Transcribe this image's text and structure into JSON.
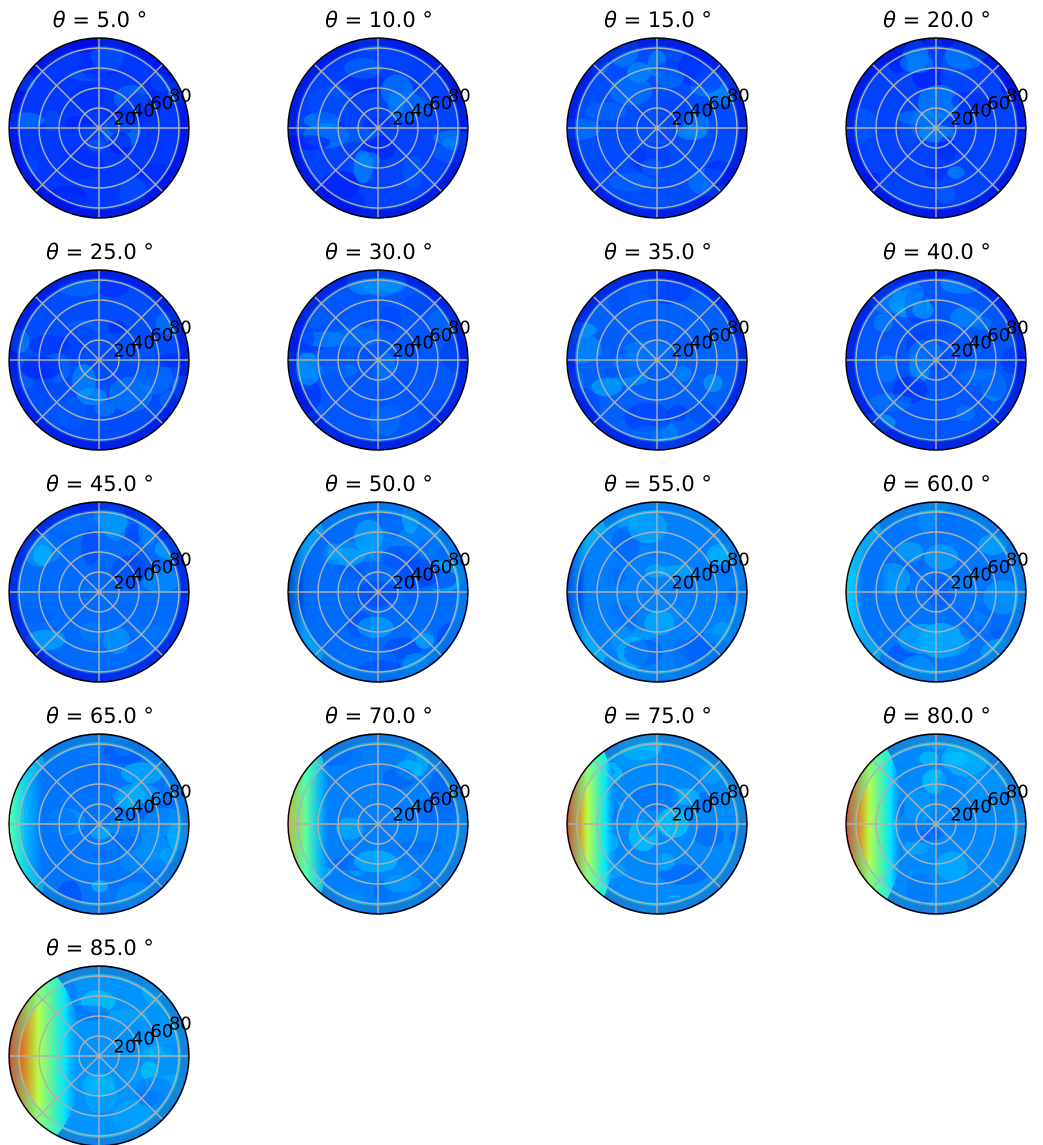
{
  "chart_data": {
    "type": "heatmap",
    "projection": "polar",
    "layout": {
      "rows": 5,
      "cols": 4,
      "panel_count": 17
    },
    "colormap": "jet",
    "grid": true,
    "radial_ticks": [
      "20",
      "40",
      "60",
      "80"
    ],
    "radial_ticks_values": [
      20,
      40,
      60,
      80
    ],
    "rlim": [
      0,
      90
    ],
    "spoke_angles_deg": [
      0,
      45,
      90,
      135,
      180,
      225,
      270,
      315
    ],
    "panels": [
      {
        "title_symbol": "θ",
        "title_value": "= 5.0 °",
        "theta_deg": 5,
        "left_edge_hot": 0.0,
        "left_band_width": 0.0,
        "background_level": 0.18
      },
      {
        "title_symbol": "θ",
        "title_value": "= 10.0 °",
        "theta_deg": 10,
        "left_edge_hot": 0.0,
        "left_band_width": 0.0,
        "background_level": 0.19
      },
      {
        "title_symbol": "θ",
        "title_value": "= 15.0 °",
        "theta_deg": 15,
        "left_edge_hot": 0.0,
        "left_band_width": 0.0,
        "background_level": 0.2
      },
      {
        "title_symbol": "θ",
        "title_value": "= 20.0 °",
        "theta_deg": 20,
        "left_edge_hot": 0.0,
        "left_band_width": 0.0,
        "background_level": 0.19
      },
      {
        "title_symbol": "θ",
        "title_value": "= 25.0 °",
        "theta_deg": 25,
        "left_edge_hot": 0.0,
        "left_band_width": 0.0,
        "background_level": 0.2
      },
      {
        "title_symbol": "θ",
        "title_value": "= 30.0 °",
        "theta_deg": 30,
        "left_edge_hot": 0.0,
        "left_band_width": 0.0,
        "background_level": 0.21
      },
      {
        "title_symbol": "θ",
        "title_value": "= 35.0 °",
        "theta_deg": 35,
        "left_edge_hot": 0.0,
        "left_band_width": 0.0,
        "background_level": 0.22
      },
      {
        "title_symbol": "θ",
        "title_value": "= 40.0 °",
        "theta_deg": 40,
        "left_edge_hot": 0.0,
        "left_band_width": 0.0,
        "background_level": 0.21
      },
      {
        "title_symbol": "θ",
        "title_value": "= 45.0 °",
        "theta_deg": 45,
        "left_edge_hot": 0.0,
        "left_band_width": 0.0,
        "background_level": 0.23
      },
      {
        "title_symbol": "θ",
        "title_value": "= 50.0 °",
        "theta_deg": 50,
        "left_edge_hot": 0.05,
        "left_band_width": 0.1,
        "background_level": 0.23
      },
      {
        "title_symbol": "θ",
        "title_value": "= 55.0 °",
        "theta_deg": 55,
        "left_edge_hot": 0.1,
        "left_band_width": 0.12,
        "background_level": 0.25
      },
      {
        "title_symbol": "θ",
        "title_value": "= 60.0 °",
        "theta_deg": 60,
        "left_edge_hot": 0.35,
        "left_band_width": 0.1,
        "background_level": 0.24
      },
      {
        "title_symbol": "θ",
        "title_value": "= 65.0 °",
        "theta_deg": 65,
        "left_edge_hot": 0.55,
        "left_band_width": 0.1,
        "background_level": 0.24
      },
      {
        "title_symbol": "θ",
        "title_value": "= 70.0 °",
        "theta_deg": 70,
        "left_edge_hot": 0.85,
        "left_band_width": 0.1,
        "background_level": 0.25
      },
      {
        "title_symbol": "θ",
        "title_value": "= 75.0 °",
        "theta_deg": 75,
        "left_edge_hot": 1.0,
        "left_band_width": 0.13,
        "background_level": 0.26
      },
      {
        "title_symbol": "θ",
        "title_value": "= 80.0 °",
        "theta_deg": 80,
        "left_edge_hot": 1.0,
        "left_band_width": 0.16,
        "background_level": 0.26
      },
      {
        "title_symbol": "θ",
        "title_value": "= 85.0 °",
        "theta_deg": 85,
        "left_edge_hot": 1.0,
        "left_band_width": 0.22,
        "background_level": 0.27
      }
    ]
  }
}
